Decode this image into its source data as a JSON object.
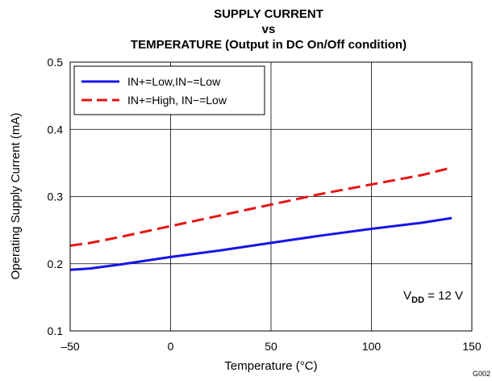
{
  "chart_data": {
    "type": "line",
    "title_lines": [
      "SUPPLY CURRENT",
      "vs",
      "TEMPERATURE (Output in DC On/Off condition)"
    ],
    "xlabel": "Temperature (°C)",
    "ylabel": "Operating Supply Current (mA)",
    "xlim": [
      -50,
      150
    ],
    "ylim": [
      0.1,
      0.5
    ],
    "xticks": [
      -50,
      0,
      50,
      100,
      150
    ],
    "xtick_labels": [
      "–50",
      "0",
      "50",
      "100",
      "150"
    ],
    "yticks": [
      0.1,
      0.2,
      0.3,
      0.4,
      0.5
    ],
    "ytick_labels": [
      "0.1",
      "0.2",
      "0.3",
      "0.4",
      "0.5"
    ],
    "grid": true,
    "legend_position": "top-left",
    "series": [
      {
        "name": "IN+=Low,IN−=Low",
        "color": "#1515e6",
        "style": "solid",
        "x": [
          -50,
          -40,
          -25,
          0,
          25,
          50,
          75,
          100,
          125,
          140
        ],
        "y": [
          0.191,
          0.193,
          0.199,
          0.21,
          0.22,
          0.231,
          0.242,
          0.252,
          0.261,
          0.268
        ]
      },
      {
        "name": "IN+=High, IN−=Low",
        "color": "#e61515",
        "style": "dashed",
        "x": [
          -50,
          -40,
          -25,
          0,
          25,
          50,
          75,
          100,
          125,
          140
        ],
        "y": [
          0.227,
          0.231,
          0.24,
          0.256,
          0.272,
          0.288,
          0.304,
          0.318,
          0.332,
          0.343
        ]
      }
    ],
    "annotation": {
      "prefix": "V",
      "subscript": "DD",
      "suffix": " = 12 V"
    },
    "figure_code": "G002"
  }
}
